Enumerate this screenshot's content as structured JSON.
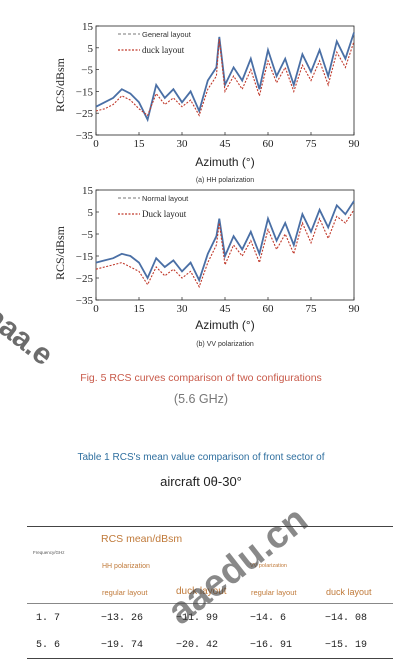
{
  "figure": {
    "caption_line1": "Fig. 5 RCS curves comparison of two configurations",
    "caption_line2": "(5.6 GHz)",
    "panels": [
      {
        "id": "hh",
        "sublabel": "(a) HH polarization",
        "legend_general": "General layout",
        "legend_duck": "duck layout"
      },
      {
        "id": "vv",
        "sublabel": "(b) VV polarization",
        "legend_general": "Normal layout",
        "legend_duck": "Duck layout"
      }
    ],
    "xlabel": "Azimuth (°)",
    "ylabel": "RCS/dBsm",
    "colors": {
      "general": "#4a6fa5",
      "duck": "#c0392b"
    }
  },
  "chart_data": [
    {
      "type": "line",
      "title": "",
      "xlabel": "Azimuth (°)",
      "ylabel": "RCS/dBsm",
      "xlim": [
        0,
        90
      ],
      "ylim": [
        -35,
        15
      ],
      "xticks": [
        0,
        15,
        30,
        45,
        60,
        75,
        90
      ],
      "yticks": [
        15,
        5,
        -5,
        -15,
        -25,
        -35
      ],
      "series": [
        {
          "name": "General layout",
          "x": [
            0,
            3,
            6,
            9,
            12,
            15,
            18,
            21,
            24,
            27,
            30,
            33,
            36,
            39,
            42,
            43,
            45,
            48,
            51,
            54,
            57,
            60,
            63,
            66,
            69,
            72,
            75,
            78,
            81,
            84,
            87,
            90
          ],
          "y": [
            -22,
            -20,
            -18,
            -14,
            -16,
            -20,
            -28,
            -12,
            -18,
            -14,
            -20,
            -15,
            -24,
            -10,
            -4,
            10,
            -12,
            -4,
            -10,
            0,
            -14,
            4,
            -8,
            0,
            -12,
            2,
            -6,
            4,
            -8,
            8,
            0,
            12
          ]
        },
        {
          "name": "duck layout",
          "x": [
            0,
            3,
            6,
            9,
            12,
            15,
            18,
            21,
            24,
            27,
            30,
            33,
            36,
            39,
            42,
            43,
            45,
            48,
            51,
            54,
            57,
            60,
            63,
            66,
            69,
            72,
            75,
            78,
            81,
            84,
            87,
            90
          ],
          "y": [
            -24,
            -23,
            -21,
            -17,
            -19,
            -23,
            -26,
            -16,
            -21,
            -18,
            -22,
            -19,
            -26,
            -14,
            -8,
            9,
            -15,
            -8,
            -14,
            -5,
            -17,
            -1,
            -11,
            -4,
            -15,
            -3,
            -10,
            -1,
            -12,
            3,
            -4,
            8
          ]
        }
      ]
    },
    {
      "type": "line",
      "title": "",
      "xlabel": "Azimuth (°)",
      "ylabel": "RCS/dBsm",
      "xlim": [
        0,
        90
      ],
      "ylim": [
        -35,
        15
      ],
      "xticks": [
        0,
        15,
        30,
        45,
        60,
        75,
        90
      ],
      "yticks": [
        15,
        5,
        -5,
        -15,
        -25,
        -35
      ],
      "series": [
        {
          "name": "Normal layout",
          "x": [
            0,
            3,
            6,
            9,
            12,
            15,
            18,
            21,
            24,
            27,
            30,
            33,
            36,
            39,
            42,
            43,
            45,
            48,
            51,
            54,
            57,
            60,
            63,
            66,
            69,
            72,
            75,
            78,
            81,
            84,
            87,
            90
          ],
          "y": [
            -18,
            -17,
            -16,
            -14,
            -15,
            -18,
            -25,
            -16,
            -20,
            -17,
            -22,
            -18,
            -26,
            -14,
            -6,
            2,
            -15,
            -6,
            -12,
            -4,
            -14,
            2,
            -8,
            0,
            -10,
            4,
            -4,
            6,
            -2,
            8,
            4,
            10
          ]
        },
        {
          "name": "Duck layout",
          "x": [
            0,
            3,
            6,
            9,
            12,
            15,
            18,
            21,
            24,
            27,
            30,
            33,
            36,
            39,
            42,
            43,
            45,
            48,
            51,
            54,
            57,
            60,
            63,
            66,
            69,
            72,
            75,
            78,
            81,
            84,
            87,
            90
          ],
          "y": [
            -21,
            -20,
            -19,
            -18,
            -20,
            -22,
            -28,
            -20,
            -24,
            -21,
            -25,
            -22,
            -29,
            -18,
            -10,
            0,
            -19,
            -10,
            -15,
            -8,
            -18,
            -3,
            -12,
            -5,
            -14,
            0,
            -9,
            2,
            -7,
            3,
            0,
            6
          ]
        }
      ]
    }
  ],
  "table": {
    "caption_line1": "Table 1 RCS's mean value comparison of front sector of",
    "caption_line2": "aircraft 0θ-30°",
    "header_group": "RCS mean/dBsm",
    "freq_header": "Frequency/GHz",
    "hh_header": "HH polarization",
    "vv_header": "VV polarization",
    "col_headers": [
      "regular layout",
      "duck layout",
      "regular layout",
      "duck layout"
    ],
    "rows": [
      {
        "freq": "1. 7",
        "values": [
          "−13. 26",
          "−11. 99",
          "−14. 6",
          "−14. 08"
        ]
      },
      {
        "freq": "5. 6",
        "values": [
          "−19. 74",
          "−20. 42",
          "−16. 91",
          "−15. 19"
        ]
      }
    ]
  },
  "watermark": {
    "text_1": "aaa.e",
    "text_2": "aaedu.cn"
  }
}
